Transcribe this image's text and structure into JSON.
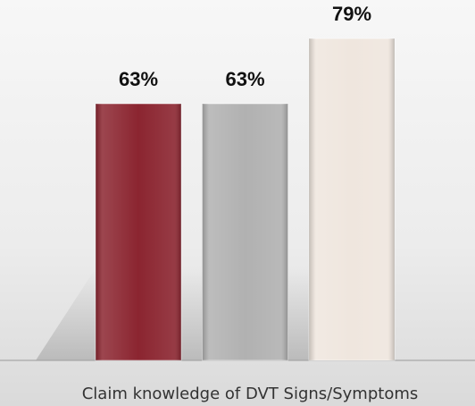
{
  "chart_data": {
    "type": "bar",
    "categories": [
      "Claim knowledge of DVT Signs/Symptoms"
    ],
    "series": [
      {
        "color": "#8b2530",
        "values": [
          63
        ],
        "value_labels": [
          "63%"
        ]
      },
      {
        "color": "#b1b1b1",
        "values": [
          63
        ],
        "value_labels": [
          "63%"
        ]
      },
      {
        "color": "#efe6de",
        "values": [
          79
        ],
        "value_labels": [
          "79%"
        ]
      }
    ]
  }
}
